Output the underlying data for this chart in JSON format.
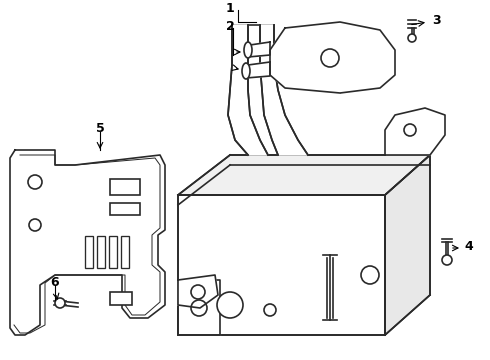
{
  "bg_color": "#ffffff",
  "line_color": "#2a2a2a",
  "line_width": 1.2,
  "figsize": [
    4.9,
    3.6
  ],
  "dpi": 100,
  "xlim": [
    0,
    490
  ],
  "ylim": [
    0,
    360
  ]
}
